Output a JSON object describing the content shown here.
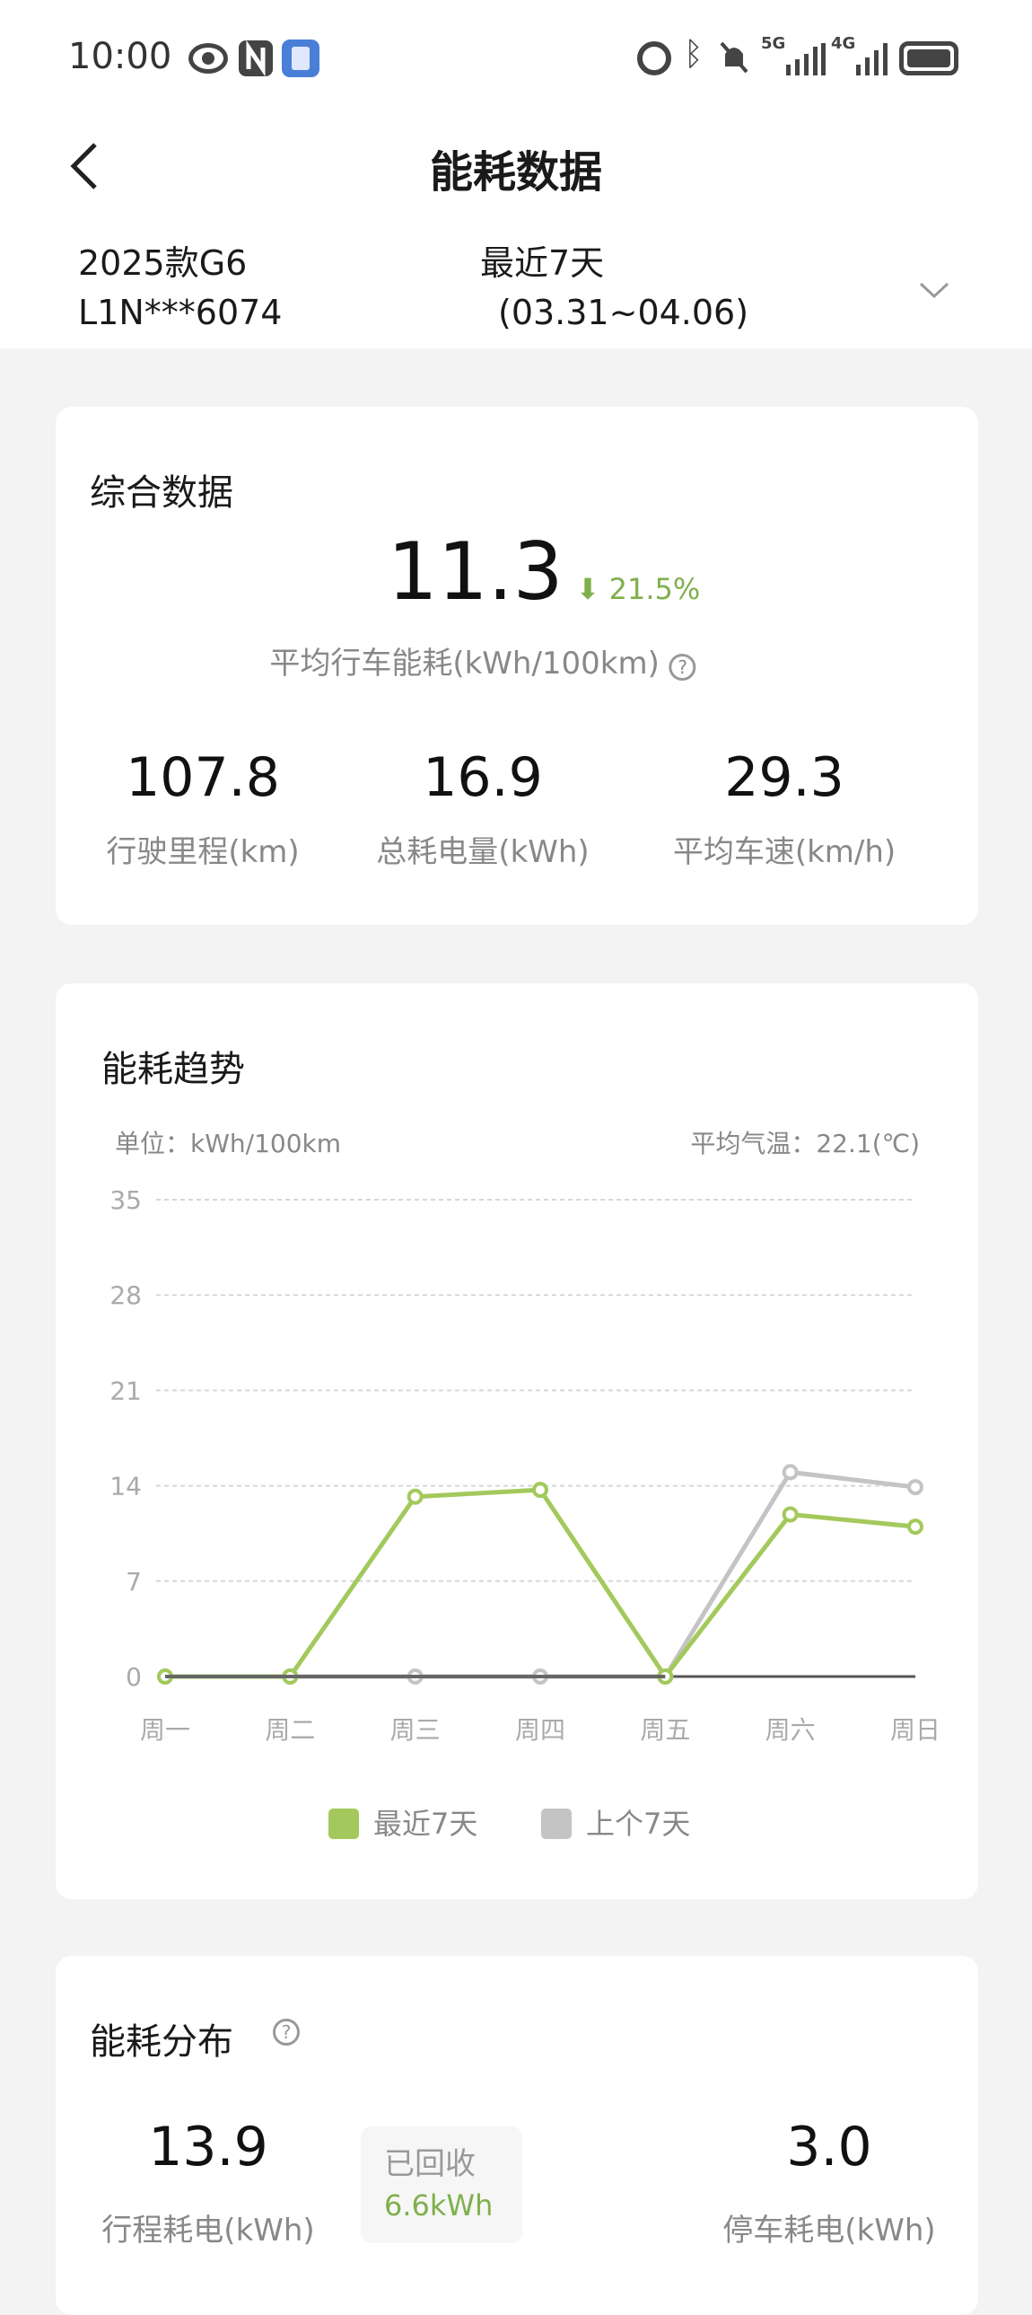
{
  "status_bar": {
    "time": "10:00",
    "icons_left": [
      "eye-icon",
      "nfc-icon",
      "app-notification-icon"
    ],
    "icons_right": [
      "alarm-icon",
      "bluetooth-icon",
      "mute-icon",
      "5g-signal-icon",
      "4g-signal-icon",
      "battery-icon"
    ],
    "net1": "5G",
    "net2": "4G"
  },
  "header": {
    "title": "能耗数据",
    "back_icon": "chevron-left-icon"
  },
  "vehicle": {
    "model": "2025款G6",
    "vin": "L1N***6074",
    "period": "最近7天",
    "range": "(03.31~04.06)"
  },
  "summary": {
    "title": "综合数据",
    "avg_value": "11.3",
    "change": "21.5%",
    "change_direction": "down",
    "avg_label": "平均行车能耗(kWh/100km)",
    "stats": [
      {
        "value": "107.8",
        "label": "行驶里程(km)"
      },
      {
        "value": "16.9",
        "label": "总耗电量(kWh)"
      },
      {
        "value": "29.3",
        "label": "平均车速(km/h)"
      }
    ]
  },
  "trend": {
    "title": "能耗趋势",
    "unit": "单位：kWh/100km",
    "temp": "平均气温：22.1(℃)"
  },
  "chart_data": {
    "type": "line",
    "categories": [
      "周一",
      "周二",
      "周三",
      "周四",
      "周五",
      "周六",
      "周日"
    ],
    "ylim": [
      0,
      35
    ],
    "yticks": [
      0,
      7,
      14,
      21,
      28,
      35
    ],
    "grid": true,
    "legend_placement": "bottom",
    "series": [
      {
        "name": "最近7天",
        "color": "#a3c95c",
        "values": [
          0,
          0,
          13.2,
          13.7,
          0,
          11.9,
          11.0
        ]
      },
      {
        "name": "上个7天",
        "color": "#c4c4c4",
        "values": [
          0,
          0,
          0,
          0,
          0,
          15.0,
          13.9
        ]
      }
    ]
  },
  "distribution": {
    "title": "能耗分布",
    "trip_value": "13.9",
    "trip_label": "行程耗电(kWh)",
    "recovered_label": "已回收",
    "recovered_value": "6.6kWh",
    "parking_value": "3.0",
    "parking_label": "停车耗电(kWh)"
  },
  "colors": {
    "accent": "#7fb04c",
    "background": "#f3f3f3"
  }
}
